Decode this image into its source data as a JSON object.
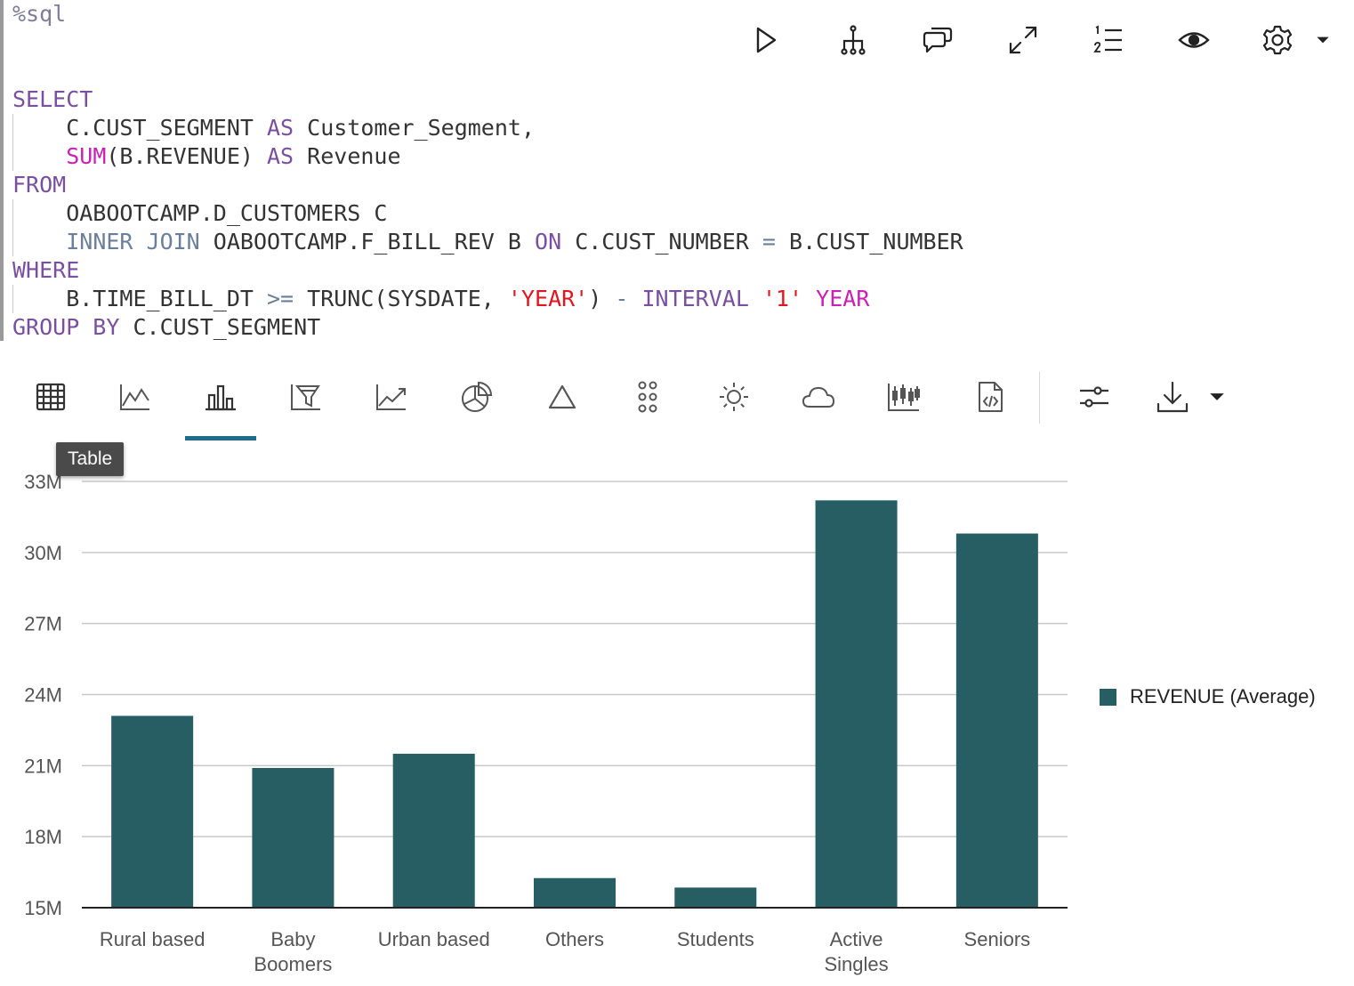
{
  "code": {
    "lines": [
      [
        {
          "t": "%sql",
          "c": "cm"
        }
      ],
      [],
      [],
      [
        {
          "t": "SELECT",
          "c": "kw"
        }
      ],
      [
        {
          "t": "    C.CUST_SEGMENT ",
          "c": ""
        },
        {
          "t": "AS",
          "c": "kw"
        },
        {
          "t": " Customer_Segment,",
          "c": ""
        }
      ],
      [
        {
          "t": "    ",
          "c": ""
        },
        {
          "t": "SUM",
          "c": "fn"
        },
        {
          "t": "(B.REVENUE) ",
          "c": ""
        },
        {
          "t": "AS",
          "c": "kw"
        },
        {
          "t": " Revenue",
          "c": ""
        }
      ],
      [
        {
          "t": "FROM",
          "c": "kw"
        }
      ],
      [
        {
          "t": "    OABOOTCAMP.D_CUSTOMERS C",
          "c": ""
        }
      ],
      [
        {
          "t": "    ",
          "c": ""
        },
        {
          "t": "INNER JOIN",
          "c": "op"
        },
        {
          "t": " OABOOTCAMP.F_BILL_REV B ",
          "c": ""
        },
        {
          "t": "ON",
          "c": "kw"
        },
        {
          "t": " C.CUST_NUMBER ",
          "c": ""
        },
        {
          "t": "=",
          "c": "op"
        },
        {
          "t": " B.CUST_NUMBER",
          "c": ""
        }
      ],
      [
        {
          "t": "WHERE",
          "c": "kw"
        }
      ],
      [
        {
          "t": "    B.TIME_BILL_DT ",
          "c": ""
        },
        {
          "t": ">=",
          "c": "op"
        },
        {
          "t": " TRUNC(SYSDATE, ",
          "c": ""
        },
        {
          "t": "'YEAR'",
          "c": "str"
        },
        {
          "t": ") ",
          "c": ""
        },
        {
          "t": "-",
          "c": "op"
        },
        {
          "t": " ",
          "c": ""
        },
        {
          "t": "INTERVAL",
          "c": "kw"
        },
        {
          "t": " ",
          "c": ""
        },
        {
          "t": "'1'",
          "c": "str"
        },
        {
          "t": " ",
          "c": ""
        },
        {
          "t": "YEAR",
          "c": "fn"
        }
      ],
      [
        {
          "t": "GROUP BY",
          "c": "kw"
        },
        {
          "t": " C.CUST_SEGMENT",
          "c": ""
        }
      ]
    ]
  },
  "top_toolbar": {
    "icons": [
      "run-icon",
      "dependency-icon",
      "comments-icon",
      "expand-icon",
      "line-numbers-icon",
      "visibility-icon",
      "settings-icon",
      "dropdown-caret-icon"
    ]
  },
  "chart_toolbar": {
    "icons": [
      "table-icon",
      "line-chart-icon",
      "bar-chart-icon",
      "funnel-chart-icon",
      "area-chart-icon",
      "pie-chart-icon",
      "triangle-chart-icon",
      "scatter-icon",
      "sunburst-icon",
      "cloud-icon",
      "stock-chart-icon",
      "code-file-icon",
      "settings-sliders-icon",
      "download-icon",
      "dropdown-caret-icon"
    ],
    "active": "bar-chart-icon"
  },
  "tooltip": "Table",
  "colors": {
    "bar": "#265e63",
    "grid": "#c9c9c9",
    "axis": "#222222",
    "accent": "#1f6c8d"
  },
  "chart_data": {
    "type": "bar",
    "categories": [
      [
        "Rural based"
      ],
      [
        "Baby",
        "Boomers"
      ],
      [
        "Urban based"
      ],
      [
        "Others"
      ],
      [
        "Students"
      ],
      [
        "Active",
        "Singles"
      ],
      [
        "Seniors"
      ]
    ],
    "series": [
      {
        "name": "REVENUE (Average)",
        "values": [
          23.1,
          20.9,
          21.5,
          16.25,
          15.85,
          32.2,
          30.8
        ]
      }
    ],
    "ylim": [
      15,
      33
    ],
    "yticks": [
      15,
      18,
      21,
      24,
      27,
      30,
      33
    ],
    "ytick_labels": [
      "15M",
      "18M",
      "21M",
      "24M",
      "27M",
      "30M",
      "33M"
    ],
    "grid": true,
    "legend_position": "right"
  }
}
